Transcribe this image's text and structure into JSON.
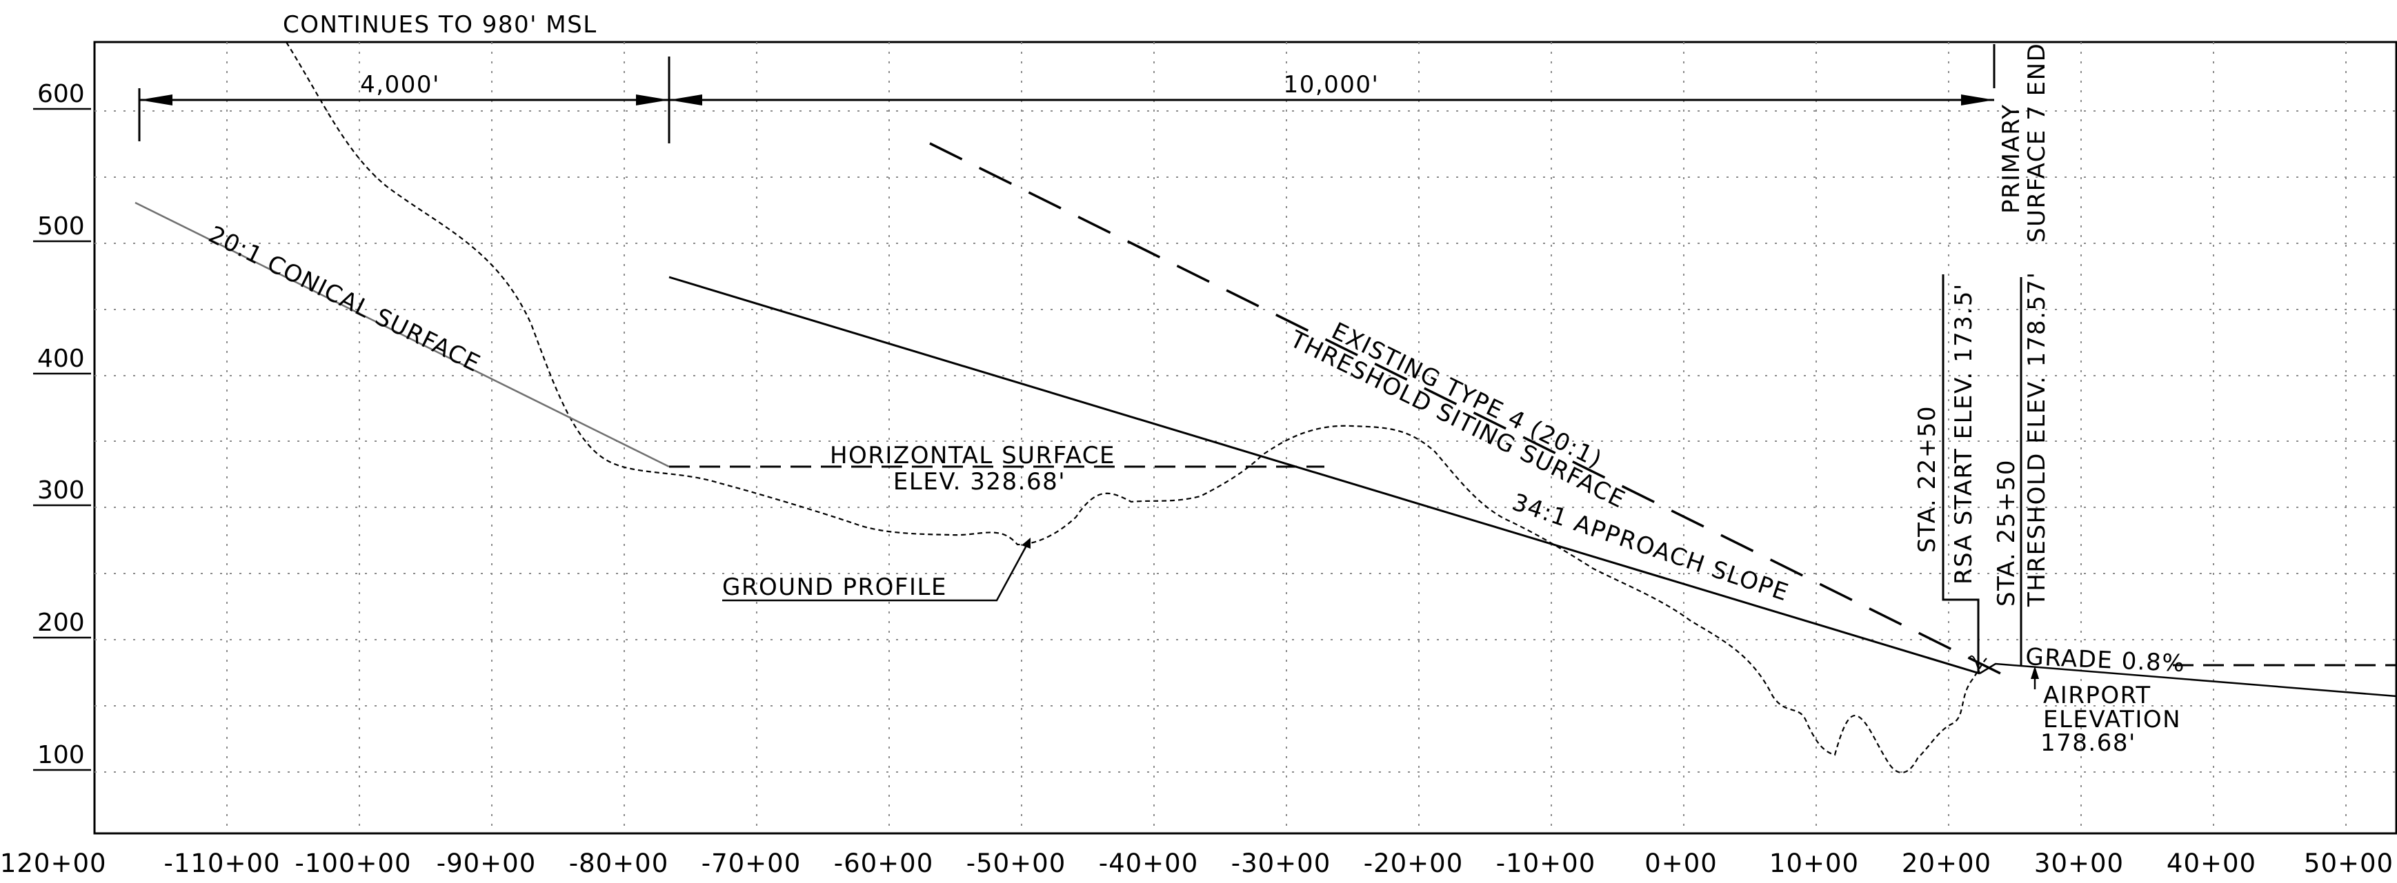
{
  "drawing": {
    "y_ticks": [
      "600",
      "500",
      "400",
      "300",
      "200",
      "100"
    ],
    "x_ticks": [
      "-120+00",
      "-110+00",
      "-100+00",
      "-90+00",
      "-80+00",
      "-70+00",
      "-60+00",
      "-50+00",
      "-40+00",
      "-30+00",
      "-20+00",
      "-10+00",
      "0+00",
      "10+00",
      "20+00",
      "30+00",
      "40+00",
      "50+00"
    ],
    "dimensions": {
      "left": "4,000'",
      "right": "10,000'"
    },
    "labels": {
      "continues": "CONTINUES TO 980' MSL",
      "conical": "20:1 CONICAL SURFACE",
      "horizontal_1": "HORIZONTAL SURFACE",
      "horizontal_2": "ELEV. 328.68'",
      "ground": "GROUND PROFILE",
      "existing_1": "EXISTING TYPE 4 (20:1)",
      "existing_2": "THRESHOLD SITING SURFACE",
      "approach": "34:1 APPROACH SLOPE",
      "primary_1": "PRIMARY",
      "primary_2": "SURFACE 7 END",
      "sta_rsa_1": "STA. 22+50",
      "sta_rsa_2": "RSA START ELEV. 173.5'",
      "sta_thr_1": "STA. 25+50",
      "sta_thr_2": "THRESHOLD ELEV. 178.57'",
      "grade": "GRADE 0.8%",
      "airport_1": "AIRPORT",
      "airport_2": "ELEVATION",
      "airport_3": "178.68'"
    }
  }
}
